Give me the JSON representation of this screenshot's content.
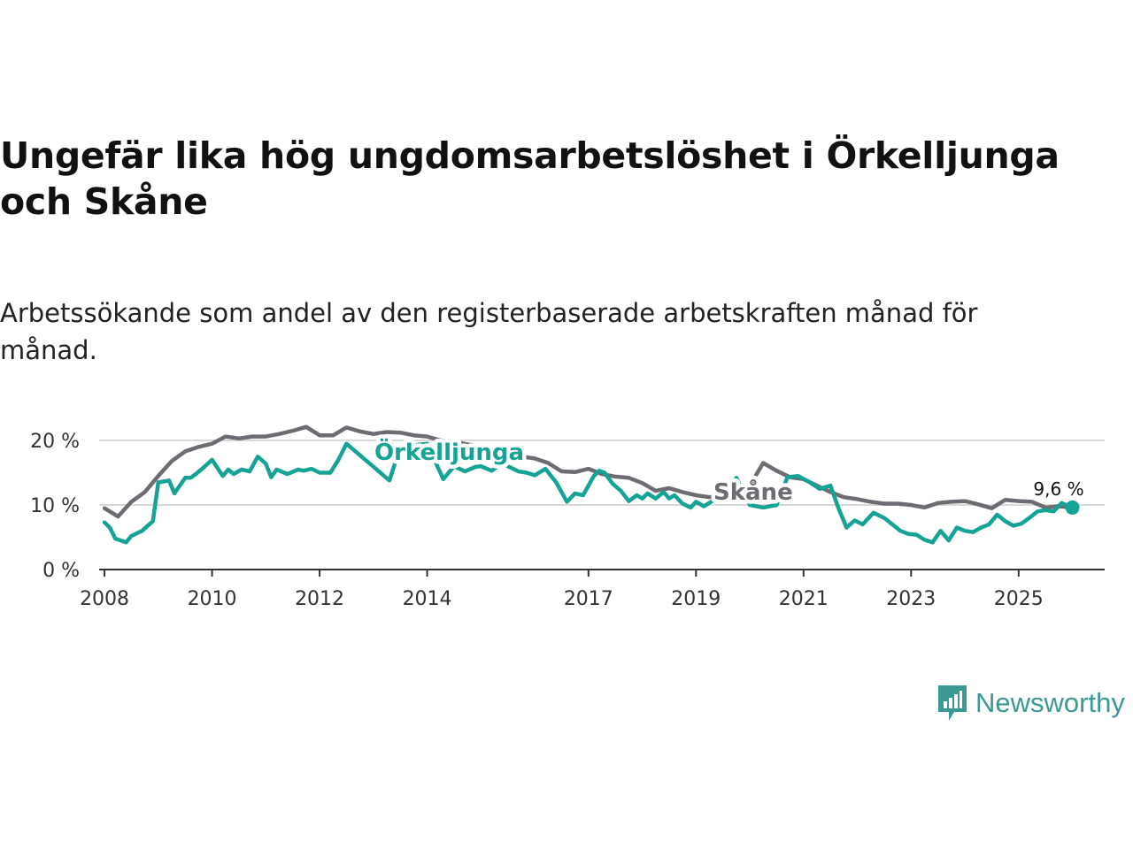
{
  "title": "Ungefär lika hög ungdomsarbetslöshet i Örkelljunga och Skåne",
  "subtitle": "Arbetssökande som andel av den registerbaserade arbetskraften månad för månad.",
  "brand": {
    "name": "Newsworthy",
    "color": "#3a9a93"
  },
  "chart_data": {
    "type": "line",
    "title": "Ungefär lika hög ungdomsarbetslöshet i Örkelljunga och Skåne",
    "xlabel": "",
    "ylabel": "",
    "xlim": [
      2007.9,
      2026.6
    ],
    "ylim": [
      0,
      22
    ],
    "yticks": [
      {
        "value": 0,
        "label": "0 %"
      },
      {
        "value": 10,
        "label": "10 %"
      },
      {
        "value": 20,
        "label": "20 %"
      }
    ],
    "xticks": [
      {
        "value": 2008,
        "label": "2008"
      },
      {
        "value": 2010,
        "label": "2010"
      },
      {
        "value": 2012,
        "label": "2012"
      },
      {
        "value": 2014,
        "label": "2014"
      },
      {
        "value": 2017,
        "label": "2017"
      },
      {
        "value": 2019,
        "label": "2019"
      },
      {
        "value": 2021,
        "label": "2021"
      },
      {
        "value": 2023,
        "label": "2023"
      },
      {
        "value": 2025,
        "label": "2025"
      }
    ],
    "grid": true,
    "end_value_label": "9,6 %",
    "series": [
      {
        "name": "Skåne",
        "label": "Skåne",
        "color": "#6e6c72",
        "x": [
          2008.0,
          2008.25,
          2008.5,
          2008.75,
          2009.0,
          2009.25,
          2009.5,
          2009.75,
          2010.0,
          2010.25,
          2010.5,
          2010.75,
          2011.0,
          2011.25,
          2011.5,
          2011.75,
          2012.0,
          2012.25,
          2012.5,
          2012.75,
          2013.0,
          2013.25,
          2013.5,
          2013.75,
          2014.0,
          2014.25,
          2014.5,
          2014.75,
          2015.0,
          2015.25,
          2015.5,
          2015.75,
          2016.0,
          2016.25,
          2016.5,
          2016.75,
          2017.0,
          2017.25,
          2017.5,
          2017.75,
          2018.0,
          2018.25,
          2018.5,
          2018.75,
          2019.0,
          2019.25,
          2019.5,
          2019.75,
          2020.0,
          2020.25,
          2020.5,
          2020.75,
          2021.0,
          2021.25,
          2021.5,
          2021.75,
          2022.0,
          2022.25,
          2022.5,
          2022.75,
          2023.0,
          2023.25,
          2023.5,
          2023.75,
          2024.0,
          2024.25,
          2024.5,
          2024.75,
          2025.0,
          2025.25,
          2025.5,
          2025.75,
          2026.0
        ],
        "y": [
          9.5,
          8.2,
          10.5,
          12.0,
          14.5,
          16.8,
          18.3,
          19.0,
          19.5,
          20.6,
          20.3,
          20.6,
          20.6,
          21.0,
          21.5,
          22.1,
          20.8,
          20.8,
          22.0,
          21.4,
          21.0,
          21.3,
          21.2,
          20.8,
          20.6,
          20.0,
          19.8,
          19.4,
          19.0,
          18.5,
          18.2,
          17.5,
          17.2,
          16.5,
          15.2,
          15.1,
          15.6,
          14.8,
          14.4,
          14.2,
          13.4,
          12.2,
          12.6,
          12.0,
          11.5,
          11.2,
          11.6,
          12.0,
          13.0,
          16.5,
          15.3,
          14.3,
          14.0,
          13.0,
          12.0,
          11.2,
          10.9,
          10.5,
          10.2,
          10.2,
          10.0,
          9.6,
          10.3,
          10.5,
          10.6,
          10.1,
          9.5,
          10.8,
          10.6,
          10.5,
          9.6,
          9.8,
          9.6
        ]
      },
      {
        "name": "Örkelljunga",
        "label": "Örkelljunga",
        "color": "#15a396",
        "x": [
          2008.0,
          2008.1,
          2008.2,
          2008.4,
          2008.5,
          2008.7,
          2008.9,
          2009.0,
          2009.2,
          2009.3,
          2009.5,
          2009.6,
          2009.7,
          2009.8,
          2010.0,
          2010.2,
          2010.3,
          2010.4,
          2010.55,
          2010.7,
          2010.85,
          2011.0,
          2011.1,
          2011.2,
          2011.4,
          2011.6,
          2011.7,
          2011.85,
          2012.0,
          2012.2,
          2012.35,
          2012.5,
          2013.3,
          2013.5,
          2014.0,
          2014.3,
          2014.5,
          2014.7,
          2014.9,
          2015.0,
          2015.2,
          2015.4,
          2015.5,
          2015.7,
          2015.85,
          2016.0,
          2016.2,
          2016.4,
          2016.5,
          2016.6,
          2016.75,
          2016.9,
          2017.0,
          2017.1,
          2017.2,
          2017.3,
          2017.45,
          2017.6,
          2017.75,
          2017.9,
          2018.0,
          2018.1,
          2018.25,
          2018.4,
          2018.5,
          2018.6,
          2018.75,
          2018.9,
          2019.0,
          2019.15,
          2019.3,
          2019.55,
          2019.75,
          2020.0,
          2020.25,
          2020.5,
          2020.7,
          2020.9,
          2021.1,
          2021.3,
          2021.5,
          2021.65,
          2021.8,
          2021.95,
          2022.1,
          2022.3,
          2022.5,
          2022.65,
          2022.8,
          2022.95,
          2023.1,
          2023.25,
          2023.4,
          2023.55,
          2023.7,
          2023.85,
          2024.0,
          2024.15,
          2024.3,
          2024.45,
          2024.6,
          2024.75,
          2024.9,
          2025.05,
          2025.2,
          2025.35,
          2025.5,
          2025.65,
          2025.8,
          2026.0
        ],
        "y": [
          7.3,
          6.5,
          4.8,
          4.2,
          5.2,
          6.0,
          7.5,
          13.5,
          13.8,
          11.8,
          14.2,
          14.2,
          14.8,
          15.5,
          17.0,
          14.5,
          15.5,
          14.8,
          15.5,
          15.2,
          17.5,
          16.4,
          14.3,
          15.5,
          14.8,
          15.5,
          15.3,
          15.6,
          15.0,
          15.0,
          17.0,
          19.5,
          13.8,
          19.0,
          19.5,
          14.0,
          16.0,
          15.2,
          15.9,
          16.0,
          15.3,
          16.5,
          16.0,
          15.2,
          15.0,
          14.6,
          15.6,
          13.5,
          12.0,
          10.5,
          11.8,
          11.5,
          13.0,
          14.5,
          15.3,
          15.0,
          13.3,
          12.2,
          10.6,
          11.5,
          11.0,
          11.8,
          11.0,
          12.0,
          11.0,
          11.5,
          10.2,
          9.6,
          10.5,
          9.8,
          10.6,
          11.5,
          14.2,
          10.0,
          9.6,
          10.0,
          14.3,
          14.5,
          13.6,
          12.5,
          13.0,
          9.5,
          6.5,
          7.6,
          7.0,
          8.8,
          8.0,
          7.0,
          6.0,
          5.5,
          5.4,
          4.6,
          4.2,
          6.0,
          4.5,
          6.5,
          6.0,
          5.8,
          6.5,
          7.0,
          8.5,
          7.5,
          6.8,
          7.1,
          8.0,
          9.0,
          9.2,
          9.0,
          10.3,
          9.6
        ]
      }
    ]
  }
}
